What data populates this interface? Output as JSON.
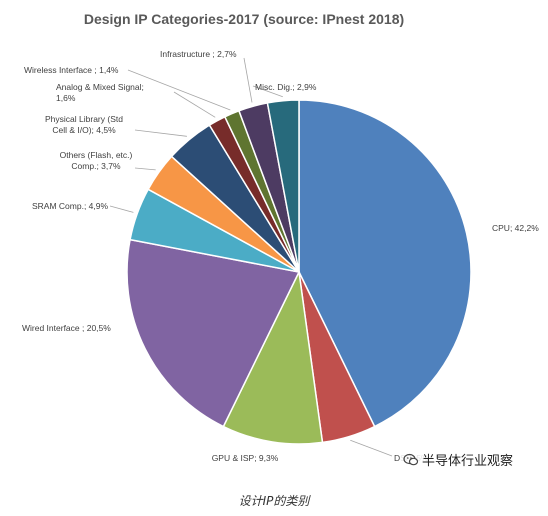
{
  "chart_data": {
    "type": "pie",
    "title": "Design IP Categories-2017 (source: IPnest 2018)",
    "slices": [
      {
        "label": "CPU; 42,2%",
        "value": 42.2,
        "color": "#4F81BD"
      },
      {
        "label": "DSP; 5%",
        "value": 5.0,
        "color": "#C0504D"
      },
      {
        "label": "GPU & ISP; 9,3%",
        "value": 9.3,
        "color": "#9BBB59"
      },
      {
        "label": "Wired Interface ; 20,5%",
        "value": 20.5,
        "color": "#8064A2"
      },
      {
        "label": "SRAM Comp.; 4,9%",
        "value": 4.9,
        "color": "#4BACC6"
      },
      {
        "label": "Others  (Flash, etc.) Comp.; 3,7%",
        "value": 3.7,
        "color": "#F79646"
      },
      {
        "label": "Physical Library (Std Cell & I/O); 4,5%",
        "value": 4.5,
        "color": "#2C4D75"
      },
      {
        "label": "Analog & Mixed Signal; 1,6%",
        "value": 1.6,
        "color": "#772C2A"
      },
      {
        "label": "Wireless Interface ; 1,4%",
        "value": 1.4,
        "color": "#5F7530"
      },
      {
        "label": "Infrastructure ; 2,7%",
        "value": 2.7,
        "color": "#4D3B62"
      },
      {
        "label": "Misc. Dig.; 2,9%",
        "value": 2.9,
        "color": "#276A7C"
      }
    ]
  },
  "caption": "设计IP的类别",
  "watermark": {
    "text": "半导体行业观察",
    "icon": "wechat-icon"
  }
}
